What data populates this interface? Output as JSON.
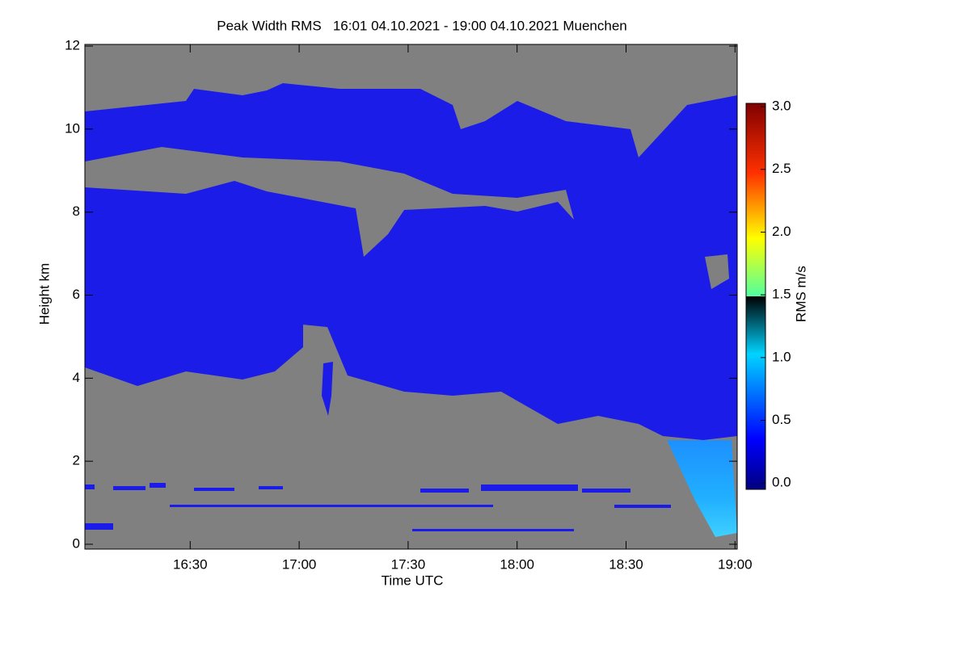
{
  "chart_data": {
    "type": "heatmap",
    "title": "Peak Width RMS   16:01 04.10.2021 - 19:00 04.10.2021 Muenchen",
    "xlabel": "Time UTC",
    "ylabel": "Height km",
    "xlim": [
      16.0167,
      19.01
    ],
    "xticks": [
      {
        "value": 16.5,
        "label": "16:30"
      },
      {
        "value": 17,
        "label": "17:00"
      },
      {
        "value": 17.5,
        "label": "17:30"
      },
      {
        "value": 18,
        "label": "18:00"
      },
      {
        "value": 18.5,
        "label": "18:30"
      },
      {
        "value": 19,
        "label": "19:00"
      }
    ],
    "ylim": [
      -0.117,
      12.04
    ],
    "yticks": [
      0,
      2,
      4,
      6,
      8,
      10,
      12
    ],
    "colorbar": {
      "label": "RMS m/s",
      "lim": [
        -0.05,
        3.026
      ],
      "ticks": [
        {
          "value": 0,
          "label": "0.0"
        },
        0.5,
        {
          "value": 1,
          "label": "1.0"
        },
        1.5,
        {
          "value": 2,
          "label": "2.0"
        },
        2.5,
        {
          "value": 3,
          "label": "3.0"
        }
      ]
    }
  }
}
